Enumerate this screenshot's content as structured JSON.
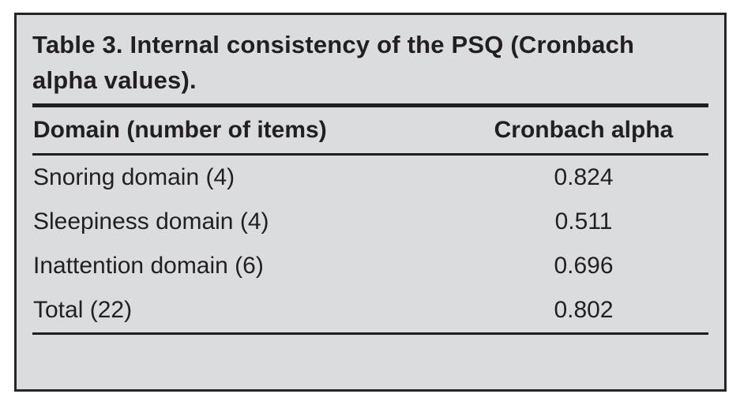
{
  "table": {
    "title_lines": [
      "Table 3. Internal consistency of the PSQ (Cronbach",
      "alpha values)."
    ],
    "columns": [
      "Domain (number of items)",
      "Cronbach alpha"
    ],
    "rows": [
      {
        "domain": "Snoring domain (4)",
        "alpha": "0.824"
      },
      {
        "domain": "Sleepiness domain (4)",
        "alpha": "0.511"
      },
      {
        "domain": "Inattention domain (6)",
        "alpha": "0.696"
      },
      {
        "domain": "Total (22)",
        "alpha": "0.802"
      }
    ]
  },
  "colors": {
    "card_background": "#dbdcdd",
    "border": "#26262a",
    "text": "#231f20",
    "rule": "#1f1f1f",
    "page_background": "#ffffff"
  }
}
